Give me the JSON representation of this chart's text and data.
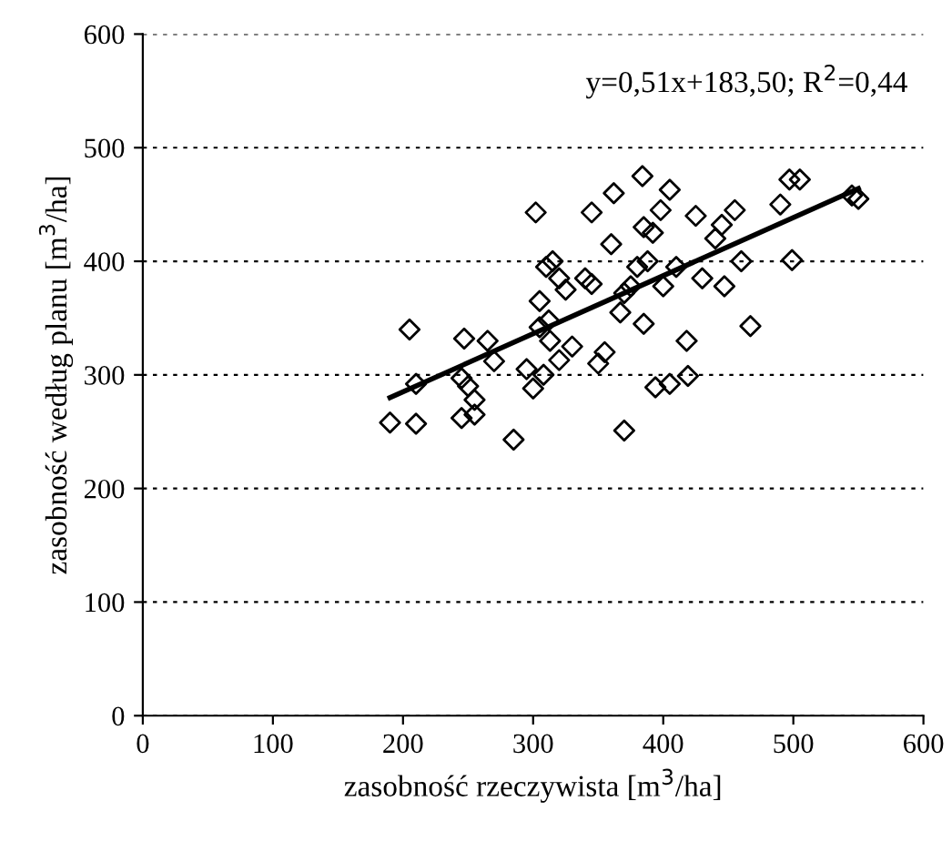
{
  "chart_data": {
    "type": "scatter",
    "xlabel": "zasobność rzeczywista [m$^{3}$/ha]",
    "ylabel": "zasobność według planu [m$^{3}$/ha]",
    "annotations": [
      "y=0,51x+183,50; R$^{2}$=0,44"
    ],
    "xlim": [
      0,
      600
    ],
    "ylim": [
      0,
      600
    ],
    "xticks": [
      0,
      100,
      200,
      300,
      400,
      500,
      600
    ],
    "yticks": [
      0,
      100,
      200,
      300,
      400,
      500,
      600
    ],
    "grid": "y",
    "series": [
      {
        "color": "#000000",
        "marker": "diamond",
        "x": [
          190,
          205,
          210,
          210,
          245,
          245,
          247,
          250,
          255,
          255,
          265,
          270,
          285,
          295,
          300,
          302,
          305,
          305,
          308,
          310,
          312,
          313,
          315,
          320,
          320,
          325,
          330,
          340,
          345,
          345,
          350,
          355,
          360,
          362,
          367,
          370,
          370,
          375,
          380,
          384,
          385,
          385,
          388,
          392,
          394,
          398,
          400,
          405,
          405,
          410,
          419,
          418,
          425,
          430,
          440,
          445,
          447,
          455,
          460,
          467,
          490,
          497,
          499,
          505,
          545,
          550
        ],
        "values": [
          258,
          340,
          292,
          257,
          297,
          262,
          332,
          290,
          278,
          265,
          330,
          312,
          243,
          305,
          288,
          443,
          342,
          365,
          300,
          395,
          348,
          330,
          400,
          313,
          385,
          375,
          325,
          385,
          443,
          380,
          310,
          320,
          415,
          460,
          355,
          251,
          372,
          378,
          395,
          475,
          430,
          345,
          400,
          425,
          289,
          445,
          378,
          292,
          463,
          395,
          299,
          330,
          440,
          385,
          420,
          432,
          378,
          445,
          400,
          343,
          450,
          472,
          401,
          472,
          458,
          455
        ]
      },
      {
        "type": "line",
        "color": "#000000",
        "marker": "none",
        "line_style": "solid",
        "x": [
          190,
          550
        ],
        "values": [
          280,
          464
        ]
      }
    ]
  }
}
